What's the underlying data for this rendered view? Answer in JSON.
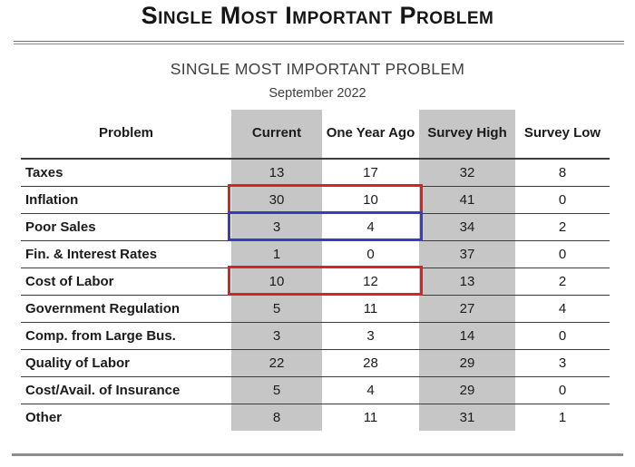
{
  "page": {
    "title": "Single Most Important Problem",
    "subtitle": "SINGLE MOST IMPORTANT PROBLEM",
    "date": "September 2022"
  },
  "table": {
    "columns": [
      "Problem",
      "Current",
      "One Year Ago",
      "Survey High",
      "Survey Low"
    ],
    "shaded_columns": [
      "Current",
      "Survey High"
    ],
    "rows": [
      {
        "problem": "Taxes",
        "current": "13",
        "one_year_ago": "17",
        "survey_high": "32",
        "survey_low": "8"
      },
      {
        "problem": "Inflation",
        "current": "30",
        "one_year_ago": "10",
        "survey_high": "41",
        "survey_low": "0"
      },
      {
        "problem": "Poor Sales",
        "current": "3",
        "one_year_ago": "4",
        "survey_high": "34",
        "survey_low": "2"
      },
      {
        "problem": "Fin. & Interest Rates",
        "current": "1",
        "one_year_ago": "0",
        "survey_high": "37",
        "survey_low": "0"
      },
      {
        "problem": "Cost of Labor",
        "current": "10",
        "one_year_ago": "12",
        "survey_high": "13",
        "survey_low": "2"
      },
      {
        "problem": "Government Regulation",
        "current": "5",
        "one_year_ago": "11",
        "survey_high": "27",
        "survey_low": "4"
      },
      {
        "problem": "Comp. from Large Bus.",
        "current": "3",
        "one_year_ago": "3",
        "survey_high": "14",
        "survey_low": "0"
      },
      {
        "problem": "Quality of Labor",
        "current": "22",
        "one_year_ago": "28",
        "survey_high": "29",
        "survey_low": "3"
      },
      {
        "problem": "Cost/Avail. of Insurance",
        "current": "5",
        "one_year_ago": "4",
        "survey_high": "29",
        "survey_low": "0"
      },
      {
        "problem": "Other",
        "current": "8",
        "one_year_ago": "11",
        "survey_high": "31",
        "survey_low": "1"
      }
    ]
  },
  "highlights": [
    {
      "name": "red-box-inflation",
      "row": "Inflation",
      "columns": [
        "Current",
        "One Year Ago"
      ],
      "color": "#dd2020"
    },
    {
      "name": "blue-box-poor-sales",
      "row": "Poor Sales",
      "columns": [
        "Current",
        "One Year Ago"
      ],
      "color": "#3b3bc2"
    },
    {
      "name": "red-box-cost-of-labor",
      "row": "Cost of Labor",
      "columns": [
        "Current",
        "One Year Ago"
      ],
      "color": "#dd2020"
    }
  ],
  "colors": {
    "shaded_column_bg": "#c6c6c6",
    "red_highlight": "#dd2020",
    "blue_highlight": "#3b3bc2"
  }
}
